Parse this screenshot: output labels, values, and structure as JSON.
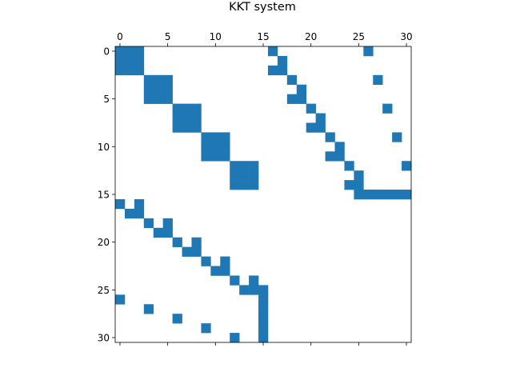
{
  "chart_data": {
    "type": "heatmap",
    "subtype": "sparsity-pattern",
    "title": "KKT system",
    "xlabel": "",
    "ylabel": "",
    "n_rows": 31,
    "n_cols": 31,
    "xlim": [
      -0.5,
      30.5
    ],
    "ylim": [
      30.5,
      -0.5
    ],
    "x_ticks": [
      0,
      5,
      10,
      15,
      20,
      25,
      30
    ],
    "y_ticks": [
      0,
      5,
      10,
      15,
      20,
      25,
      30
    ],
    "x_axis_position": "top",
    "y_axis_inverted": true,
    "grid": false,
    "color": "#1f77b4",
    "nonzeros": [
      [
        0,
        0
      ],
      [
        0,
        1
      ],
      [
        0,
        2
      ],
      [
        1,
        0
      ],
      [
        1,
        1
      ],
      [
        1,
        2
      ],
      [
        2,
        0
      ],
      [
        2,
        1
      ],
      [
        2,
        2
      ],
      [
        3,
        3
      ],
      [
        3,
        4
      ],
      [
        3,
        5
      ],
      [
        4,
        3
      ],
      [
        4,
        4
      ],
      [
        4,
        5
      ],
      [
        5,
        3
      ],
      [
        5,
        4
      ],
      [
        5,
        5
      ],
      [
        6,
        6
      ],
      [
        6,
        7
      ],
      [
        6,
        8
      ],
      [
        7,
        6
      ],
      [
        7,
        7
      ],
      [
        7,
        8
      ],
      [
        8,
        6
      ],
      [
        8,
        7
      ],
      [
        8,
        8
      ],
      [
        9,
        9
      ],
      [
        9,
        10
      ],
      [
        9,
        11
      ],
      [
        10,
        9
      ],
      [
        10,
        10
      ],
      [
        10,
        11
      ],
      [
        11,
        9
      ],
      [
        11,
        10
      ],
      [
        11,
        11
      ],
      [
        12,
        12
      ],
      [
        12,
        13
      ],
      [
        12,
        14
      ],
      [
        13,
        12
      ],
      [
        13,
        13
      ],
      [
        13,
        14
      ],
      [
        14,
        12
      ],
      [
        14,
        13
      ],
      [
        14,
        14
      ],
      [
        0,
        16
      ],
      [
        1,
        17
      ],
      [
        2,
        16
      ],
      [
        2,
        17
      ],
      [
        3,
        18
      ],
      [
        4,
        19
      ],
      [
        5,
        18
      ],
      [
        5,
        19
      ],
      [
        6,
        20
      ],
      [
        7,
        21
      ],
      [
        8,
        20
      ],
      [
        8,
        21
      ],
      [
        9,
        22
      ],
      [
        10,
        23
      ],
      [
        11,
        22
      ],
      [
        11,
        23
      ],
      [
        12,
        24
      ],
      [
        13,
        25
      ],
      [
        14,
        24
      ],
      [
        14,
        25
      ],
      [
        0,
        26
      ],
      [
        3,
        27
      ],
      [
        6,
        28
      ],
      [
        9,
        29
      ],
      [
        12,
        30
      ],
      [
        15,
        25
      ],
      [
        15,
        26
      ],
      [
        15,
        27
      ],
      [
        15,
        28
      ],
      [
        15,
        29
      ],
      [
        15,
        30
      ],
      [
        16,
        0
      ],
      [
        17,
        1
      ],
      [
        16,
        2
      ],
      [
        17,
        2
      ],
      [
        18,
        3
      ],
      [
        19,
        4
      ],
      [
        18,
        5
      ],
      [
        19,
        5
      ],
      [
        20,
        6
      ],
      [
        21,
        7
      ],
      [
        20,
        8
      ],
      [
        21,
        8
      ],
      [
        22,
        9
      ],
      [
        23,
        10
      ],
      [
        22,
        11
      ],
      [
        23,
        11
      ],
      [
        24,
        12
      ],
      [
        25,
        13
      ],
      [
        24,
        14
      ],
      [
        25,
        14
      ],
      [
        26,
        0
      ],
      [
        27,
        3
      ],
      [
        28,
        6
      ],
      [
        29,
        9
      ],
      [
        30,
        12
      ],
      [
        25,
        15
      ],
      [
        26,
        15
      ],
      [
        27,
        15
      ],
      [
        28,
        15
      ],
      [
        29,
        15
      ],
      [
        30,
        15
      ]
    ]
  }
}
